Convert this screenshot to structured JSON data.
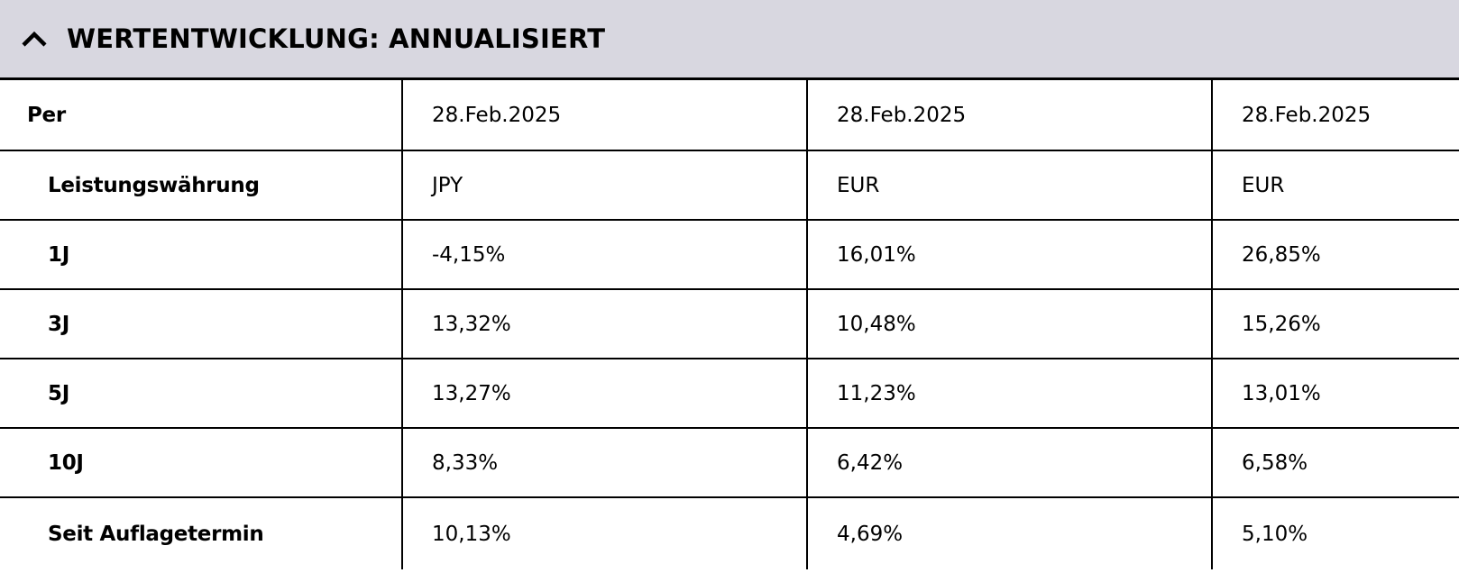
{
  "section": {
    "title": "WERTENTWICKLUNG: ANNUALISIERT",
    "toggle_icon": "chevron-up-icon"
  },
  "table": {
    "rows": [
      {
        "label": "Per",
        "values": [
          "28.Feb.2025",
          "28.Feb.2025",
          "28.Feb.2025"
        ]
      },
      {
        "label": "Leistungswährung",
        "values": [
          "JPY",
          "EUR",
          "EUR"
        ]
      },
      {
        "label": "1J",
        "values": [
          "-4,15%",
          "16,01%",
          "26,85%"
        ]
      },
      {
        "label": "3J",
        "values": [
          "13,32%",
          "10,48%",
          "15,26%"
        ]
      },
      {
        "label": "5J",
        "values": [
          "13,27%",
          "11,23%",
          "13,01%"
        ]
      },
      {
        "label": "10J",
        "values": [
          "8,33%",
          "6,42%",
          "6,58%"
        ]
      },
      {
        "label": "Seit Auflagetermin",
        "values": [
          "10,13%",
          "4,69%",
          "5,10%"
        ]
      }
    ]
  },
  "colors": {
    "header_bg": "#d8d7e0",
    "border": "#000000"
  }
}
